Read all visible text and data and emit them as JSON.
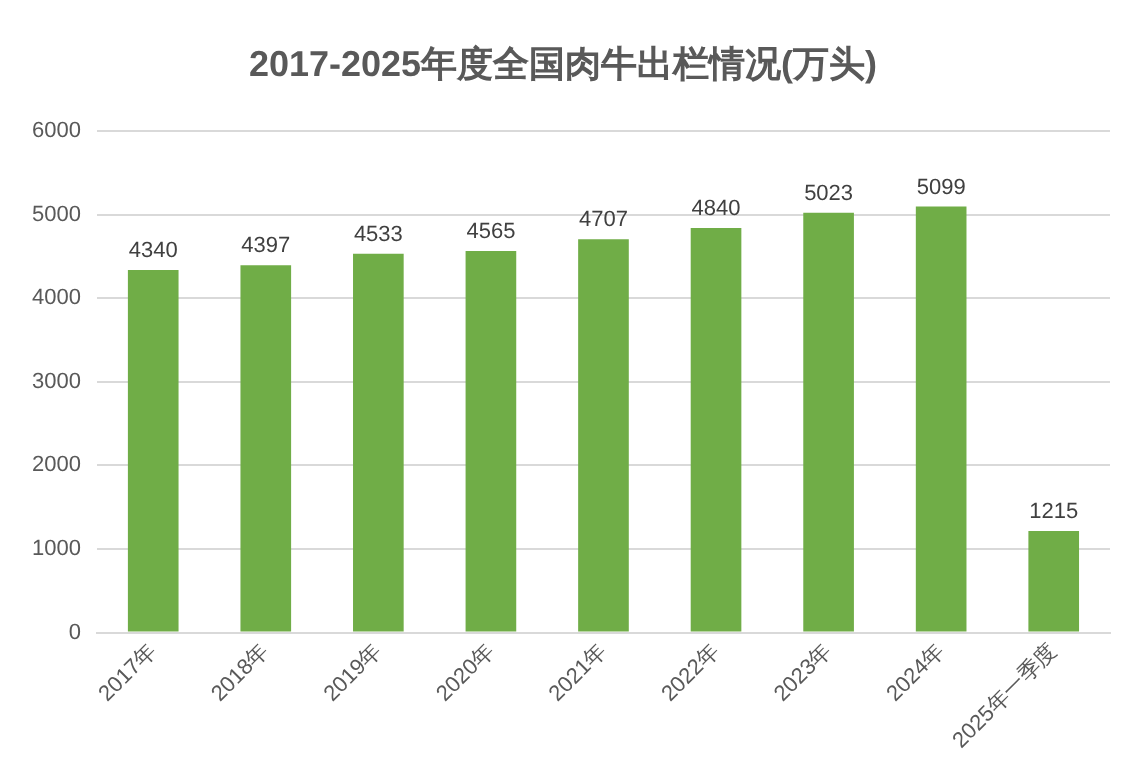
{
  "chart_data": {
    "type": "bar",
    "title": "2017-2025年度全国肉牛出栏情况(万头)",
    "categories": [
      "2017年",
      "2018年",
      "2019年",
      "2020年",
      "2021年",
      "2022年",
      "2023年",
      "2024年",
      "2025年一季度"
    ],
    "values": [
      4340,
      4397,
      4533,
      4565,
      4707,
      4840,
      5023,
      5099,
      1215
    ],
    "color": "#70ad47",
    "ylim": [
      0,
      6000
    ],
    "yticks": [
      0,
      1000,
      2000,
      3000,
      4000,
      5000,
      6000
    ],
    "grid": "y",
    "data_labels": true
  }
}
